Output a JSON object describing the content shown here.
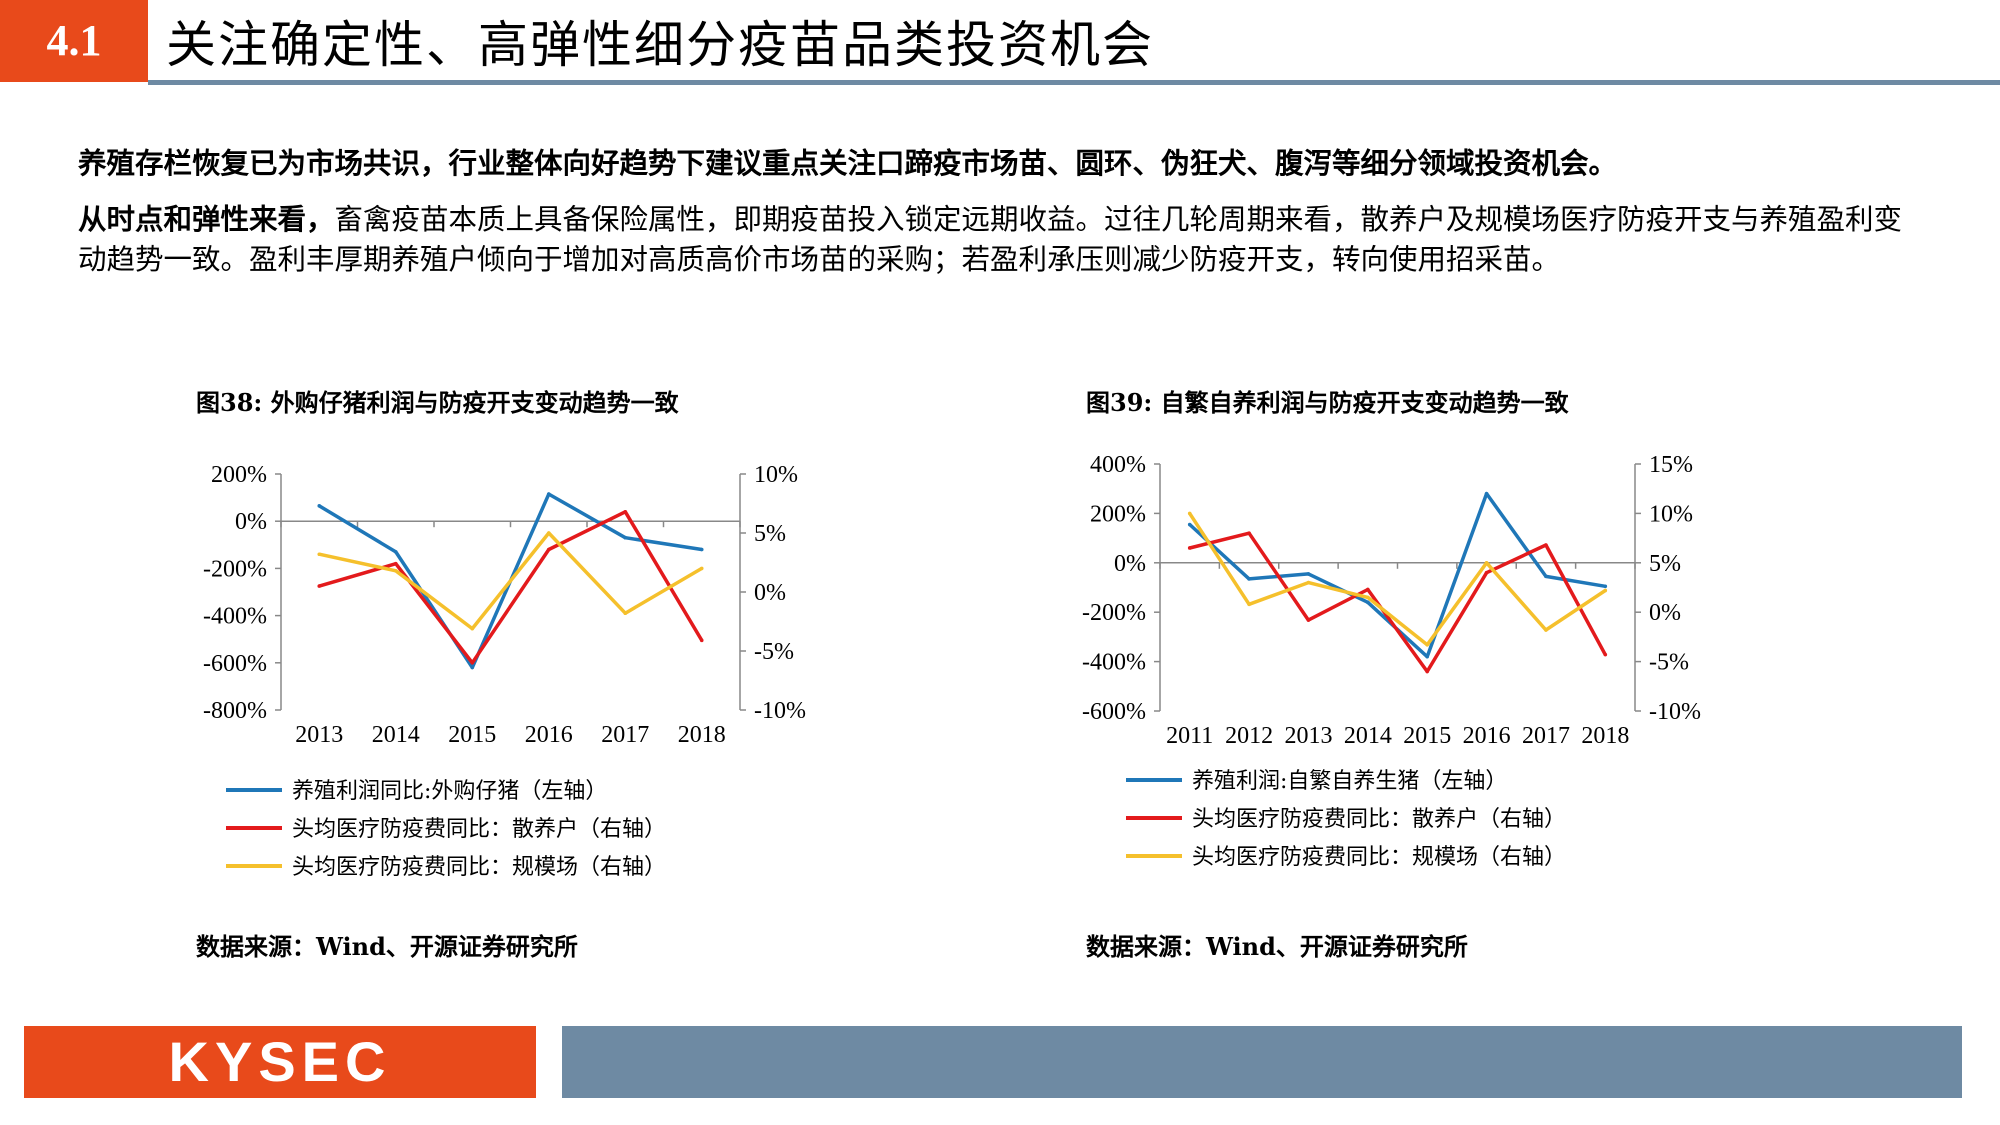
{
  "header": {
    "section_number": "4.1",
    "title": "关注确定性、高弹性细分疫苗品类投资机会"
  },
  "paragraphs": {
    "p1": "养殖存栏恢复已为市场共识，行业整体向好趋势下建议重点关注口蹄疫市场苗、圆环、伪狂犬、腹泻等细分领域投资机会。",
    "p2_bold": "从时点和弹性来看，",
    "p2_rest": "畜禽疫苗本质上具备保险属性，即期疫苗投入锁定远期收益。过往几轮周期来看，散养户及规模场医疗防疫开支与养殖盈利变动趋势一致。盈利丰厚期养殖户倾向于增加对高质高价市场苗的采购；若盈利承压则减少防疫开支，转向使用招采苗。"
  },
  "figures": [
    {
      "title": "图38:  外购仔猪利润与防疫开支变动趋势一致",
      "source": "数据来源：Wind、开源证券研究所"
    },
    {
      "title": "图39:  自繁自养利润与防疫开支变动趋势一致",
      "source": "数据来源：Wind、开源证券研究所"
    }
  ],
  "footer": {
    "logo_text": "KYSEC"
  },
  "colors": {
    "accent": "#e84a1b",
    "bar": "#6e8aa3",
    "blue": "#1f77b8",
    "red": "#e31a1c",
    "yellow": "#f5c02c"
  },
  "chart_data": [
    {
      "type": "line",
      "categories": [
        "2013",
        "2014",
        "2015",
        "2016",
        "2017",
        "2018"
      ],
      "y_left": {
        "lim": [
          -800,
          200
        ],
        "ticks": [
          -800,
          -600,
          -400,
          -200,
          0,
          200
        ],
        "tick_labels": [
          "-800%",
          "-600%",
          "-400%",
          "-200%",
          "0%",
          "200%"
        ]
      },
      "y_right": {
        "lim": [
          -10,
          10
        ],
        "ticks": [
          -10,
          -5,
          0,
          5,
          10
        ],
        "tick_labels": [
          "-10%",
          "-5%",
          "0%",
          "5%",
          "10%"
        ]
      },
      "series": [
        {
          "name": "养殖利润同比:外购仔猪（左轴）",
          "axis": "left",
          "color": "#1f77b8",
          "values": [
            65,
            -130,
            -620,
            115,
            -70,
            -120
          ]
        },
        {
          "name": "头均医疗防疫费同比：散养户（右轴）",
          "axis": "right",
          "color": "#e31a1c",
          "values": [
            0.5,
            2.4,
            -6.0,
            3.6,
            6.8,
            -4.1
          ]
        },
        {
          "name": "头均医疗防疫费同比：规模场（右轴）",
          "axis": "right",
          "color": "#f5c02c",
          "values": [
            3.2,
            1.8,
            -3.1,
            5.0,
            -1.8,
            2.0
          ]
        }
      ]
    },
    {
      "type": "line",
      "categories": [
        "2011",
        "2012",
        "2013",
        "2014",
        "2015",
        "2016",
        "2017",
        "2018"
      ],
      "y_left": {
        "lim": [
          -600,
          400
        ],
        "ticks": [
          -600,
          -400,
          -200,
          0,
          200,
          400
        ],
        "tick_labels": [
          "-600%",
          "-400%",
          "-200%",
          "0%",
          "200%",
          "400%"
        ]
      },
      "y_right": {
        "lim": [
          -10,
          15
        ],
        "ticks": [
          -10,
          -5,
          0,
          5,
          10,
          15
        ],
        "tick_labels": [
          "-10%",
          "-5%",
          "0%",
          "5%",
          "10%",
          "15%"
        ]
      },
      "series": [
        {
          "name": "养殖利润:自繁自养生猪（左轴）",
          "axis": "left",
          "color": "#1f77b8",
          "values": [
            155,
            -65,
            -45,
            -160,
            -380,
            280,
            -55,
            -95
          ]
        },
        {
          "name": "头均医疗防疫费同比：散养户（右轴）",
          "axis": "right",
          "color": "#e31a1c",
          "values": [
            6.5,
            8.0,
            -0.8,
            2.3,
            -6.0,
            4.0,
            6.8,
            -4.3
          ]
        },
        {
          "name": "头均医疗防疫费同比：规模场（右轴）",
          "axis": "right",
          "color": "#f5c02c",
          "values": [
            10.0,
            0.8,
            3.0,
            1.5,
            -3.3,
            5.0,
            -1.8,
            2.2
          ]
        }
      ]
    }
  ]
}
